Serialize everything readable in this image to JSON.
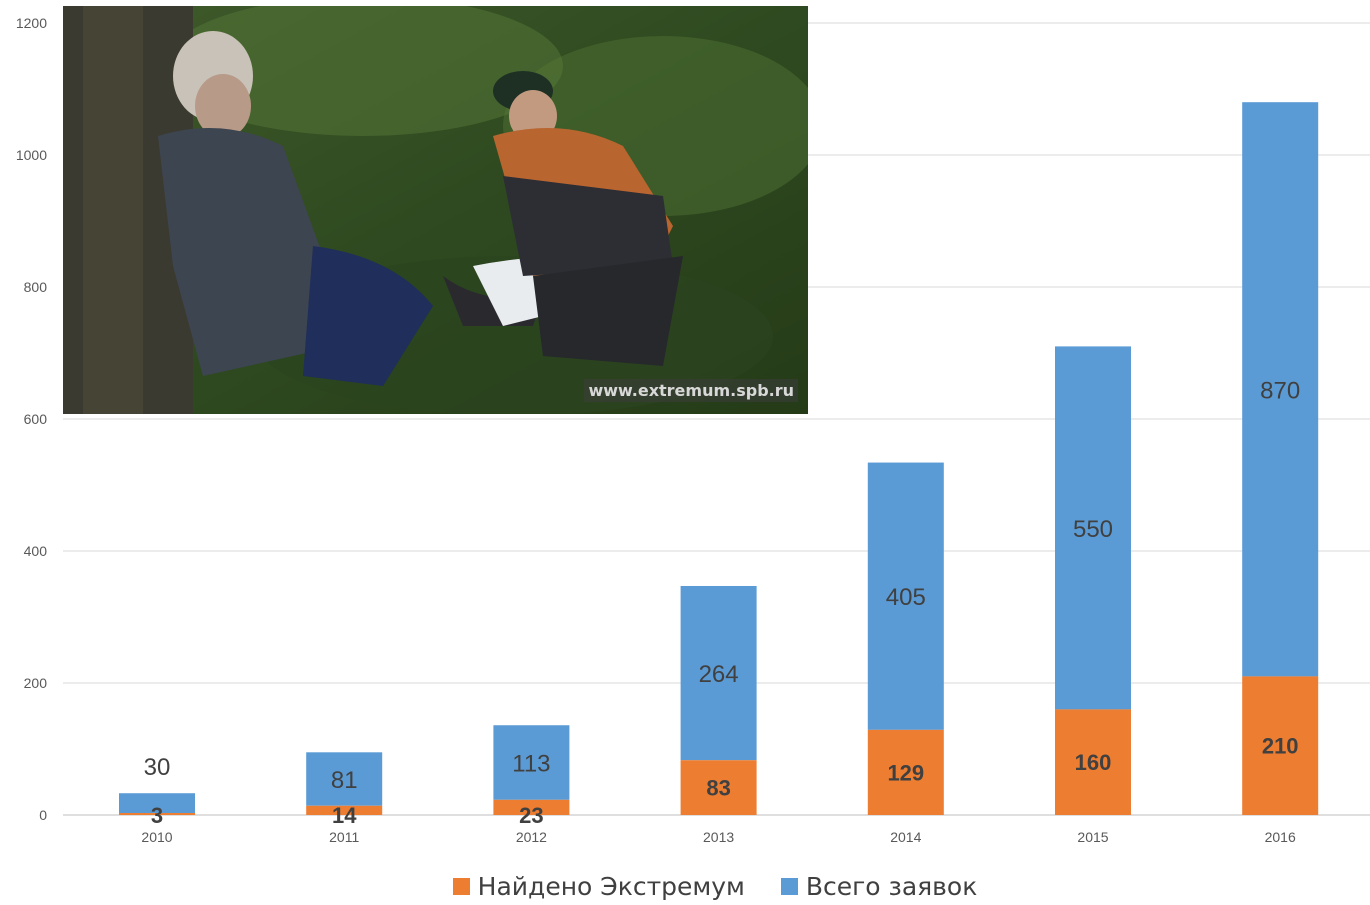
{
  "chart_data": {
    "type": "bar",
    "stacked": true,
    "categories": [
      "2010",
      "2011",
      "2012",
      "2013",
      "2014",
      "2015",
      "2016"
    ],
    "series": [
      {
        "name": "Найдено Экстремум",
        "color": "#ED7D31",
        "values": [
          3,
          14,
          23,
          83,
          129,
          160,
          210
        ]
      },
      {
        "name": "Всего заявок",
        "color": "#5B9BD5",
        "values": [
          30,
          81,
          113,
          264,
          405,
          550,
          870
        ]
      }
    ],
    "yticks": [
      0,
      200,
      400,
      600,
      800,
      1000,
      1200
    ],
    "ylim": [
      0,
      1200
    ],
    "grid": true,
    "legend_position": "bottom"
  },
  "photo": {
    "watermark": "www.extremum.spb.ru"
  }
}
